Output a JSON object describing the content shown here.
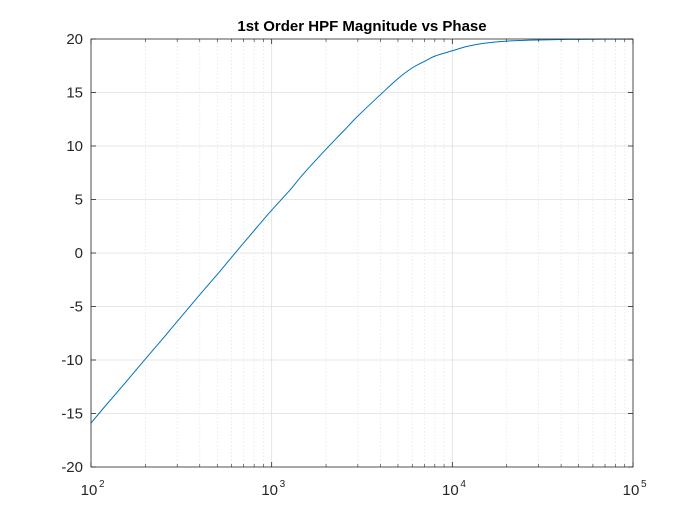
{
  "figure": {
    "background": "#ffffff"
  },
  "chart_data": {
    "type": "line",
    "title": "1st Order HPF Magnitude vs Phase",
    "xlabel": "",
    "ylabel": "",
    "xscale": "log",
    "xlim": [
      100,
      100000
    ],
    "ylim": [
      -20,
      20
    ],
    "x_ticks": [
      {
        "base": "10",
        "exp": "2",
        "value": 100
      },
      {
        "base": "10",
        "exp": "3",
        "value": 1000
      },
      {
        "base": "10",
        "exp": "4",
        "value": 10000
      },
      {
        "base": "10",
        "exp": "5",
        "value": 100000
      }
    ],
    "y_ticks": [
      {
        "label": "20",
        "value": 20
      },
      {
        "label": "15",
        "value": 15
      },
      {
        "label": "10",
        "value": 10
      },
      {
        "label": "5",
        "value": 5
      },
      {
        "label": "0",
        "value": 0
      },
      {
        "label": "-5",
        "value": -5
      },
      {
        "label": "-10",
        "value": -10
      },
      {
        "label": "-15",
        "value": -15
      },
      {
        "label": "-20",
        "value": -20
      }
    ],
    "grid": {
      "major": true,
      "minor_x": true
    },
    "colors": {
      "line": "#0072bd",
      "axes": "#262626",
      "grid_major": "#dfdfdf",
      "grid_minor": "#e6e6e6"
    },
    "series": [
      {
        "x": [
          100,
          120,
          150,
          200,
          250,
          300,
          400,
          500,
          600,
          800,
          1000,
          1250,
          1500,
          2000,
          2500,
          3000,
          4000,
          5000,
          6000,
          7000,
          8000,
          10000,
          12000,
          15000,
          20000,
          25000,
          30000,
          40000,
          50000,
          70000,
          100000
        ],
        "y": [
          -15.9,
          -14.3,
          -12.4,
          -9.9,
          -8.0,
          -6.4,
          -3.9,
          -2.0,
          -0.4,
          2.1,
          4.0,
          5.8,
          7.4,
          9.7,
          11.4,
          12.8,
          14.8,
          16.3,
          17.3,
          17.9,
          18.4,
          18.9,
          19.3,
          19.6,
          19.8,
          19.87,
          19.91,
          19.95,
          19.97,
          19.985,
          19.99
        ]
      }
    ]
  }
}
